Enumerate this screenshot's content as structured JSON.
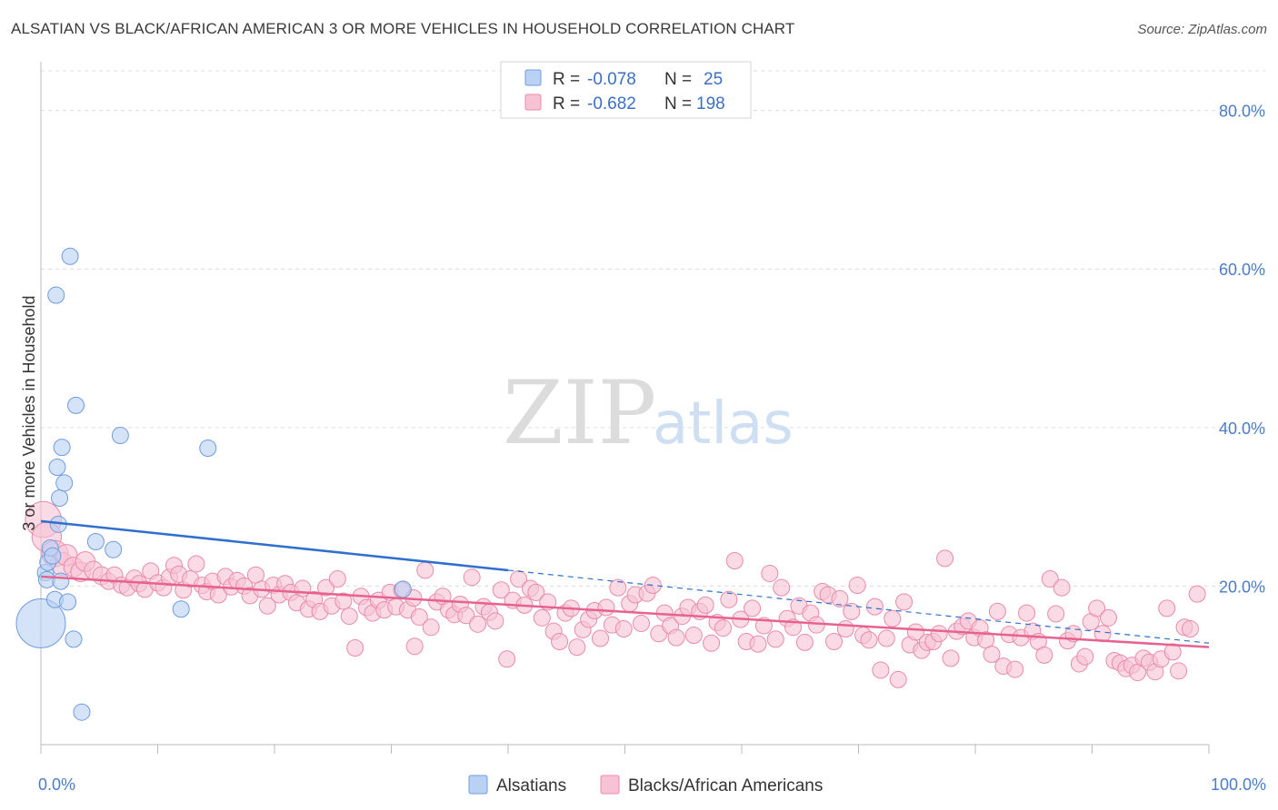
{
  "header": {
    "title": "ALSATIAN VS BLACK/AFRICAN AMERICAN 3 OR MORE VEHICLES IN HOUSEHOLD CORRELATION CHART",
    "source": "Source: ZipAtlas.com"
  },
  "watermark": {
    "zip": "ZIP",
    "atlas": "atlas"
  },
  "colors": {
    "blue_fill": "#b9d1f3",
    "blue_stroke": "#6e9be0",
    "blue_line": "#2f6fce",
    "pink_fill": "#f7c3d4",
    "pink_stroke": "#e98aaa",
    "pink_line": "#e8628e",
    "tick_label": "#4a7dc9",
    "grid": "#dcdcdc"
  },
  "legend": {
    "rows": [
      {
        "r_label": "R = ",
        "r_value": "-0.078",
        "n_label": "N = ",
        "n_value": "25",
        "series": "blue"
      },
      {
        "r_label": "R = ",
        "r_value": "-0.682",
        "n_label": "N = ",
        "n_value": "198",
        "series": "pink"
      }
    ],
    "bottom": [
      "Alsatians",
      "Blacks/African Americans"
    ]
  },
  "chart_data": {
    "type": "scatter",
    "xlabel": "",
    "ylabel": "3 or more Vehicles in Household",
    "xlim": [
      0,
      100
    ],
    "ylim": [
      0,
      85
    ],
    "x_tick_labels": [
      "0.0%",
      "100.0%"
    ],
    "y_ticks": [
      20,
      40,
      60,
      80
    ],
    "y_tick_labels": [
      "20.0%",
      "40.0%",
      "60.0%",
      "80.0%"
    ],
    "grid": true,
    "legend_placement": "top-center",
    "series": [
      {
        "name": "Alsatians",
        "color": "blue",
        "trend": {
          "x": [
            0,
            40
          ],
          "y": [
            28.2,
            22.0
          ],
          "dashed_to": [
            100,
            12.8
          ]
        },
        "points": [
          [
            0,
            15.3,
            3
          ],
          [
            0.4,
            21.7,
            1
          ],
          [
            0.5,
            20.8,
            1
          ],
          [
            0.6,
            23,
            1
          ],
          [
            0.8,
            24.8,
            1
          ],
          [
            1.0,
            23.8,
            1
          ],
          [
            1.2,
            18.3,
            1
          ],
          [
            1.3,
            56.7,
            1
          ],
          [
            1.4,
            35,
            1
          ],
          [
            1.5,
            27.8,
            1
          ],
          [
            1.6,
            31.1,
            1
          ],
          [
            1.7,
            20.6,
            1
          ],
          [
            1.8,
            37.5,
            1
          ],
          [
            2.0,
            33,
            1
          ],
          [
            2.3,
            18,
            1
          ],
          [
            2.5,
            61.6,
            1
          ],
          [
            2.8,
            13.3,
            1
          ],
          [
            3.0,
            42.8,
            1
          ],
          [
            3.5,
            4.1,
            1
          ],
          [
            4.7,
            25.6,
            1
          ],
          [
            6.2,
            24.6,
            1
          ],
          [
            6.8,
            39,
            1
          ],
          [
            12.0,
            17.1,
            1
          ],
          [
            14.3,
            37.4,
            1
          ],
          [
            31.0,
            19.6,
            1
          ]
        ]
      },
      {
        "name": "Blacks/African Americans",
        "color": "pink",
        "trend": {
          "x": [
            0,
            100
          ],
          "y": [
            21.2,
            12.3
          ]
        },
        "points": [
          [
            0.2,
            28.4,
            2.2
          ],
          [
            0.5,
            26.2,
            1.8
          ],
          [
            1.2,
            24.1,
            1.6
          ],
          [
            1.8,
            22.8,
            1.4
          ],
          [
            2.2,
            23.9,
            1.3
          ],
          [
            2.8,
            22.4,
            1.2
          ],
          [
            3.4,
            21.8,
            1.2
          ],
          [
            3.8,
            23.1,
            1.2
          ],
          [
            4.5,
            22.0,
            1.1
          ],
          [
            5.2,
            21.3,
            1.1
          ],
          [
            5.8,
            20.6,
            1
          ],
          [
            6.3,
            21.4,
            1
          ],
          [
            6.9,
            20.1,
            1
          ],
          [
            7.4,
            19.8,
            1
          ],
          [
            8.0,
            21.0,
            1
          ],
          [
            8.4,
            20.3,
            1
          ],
          [
            8.9,
            19.6,
            1
          ],
          [
            9.4,
            21.9,
            1
          ],
          [
            10.0,
            20.4,
            1
          ],
          [
            10.5,
            19.8,
            1
          ],
          [
            11.0,
            21.1,
            1
          ],
          [
            11.4,
            22.6,
            1
          ],
          [
            11.8,
            21.5,
            1
          ],
          [
            12.2,
            19.5,
            1
          ],
          [
            12.8,
            20.9,
            1
          ],
          [
            13.3,
            22.8,
            1
          ],
          [
            13.8,
            20.1,
            1
          ],
          [
            14.2,
            19.3,
            1
          ],
          [
            14.7,
            20.6,
            1
          ],
          [
            15.2,
            18.9,
            1
          ],
          [
            15.8,
            21.2,
            1
          ],
          [
            16.3,
            19.9,
            1
          ],
          [
            16.8,
            20.7,
            1
          ],
          [
            17.4,
            20.0,
            1
          ],
          [
            17.9,
            18.8,
            1
          ],
          [
            18.4,
            21.4,
            1
          ],
          [
            18.9,
            19.6,
            1
          ],
          [
            19.4,
            17.5,
            1
          ],
          [
            19.9,
            20.1,
            1
          ],
          [
            20.4,
            18.9,
            1
          ],
          [
            20.9,
            20.3,
            1
          ],
          [
            21.4,
            19.2,
            1
          ],
          [
            21.9,
            17.9,
            1
          ],
          [
            22.4,
            19.7,
            1
          ],
          [
            22.9,
            17.1,
            1
          ],
          [
            23.4,
            18.3,
            1
          ],
          [
            23.9,
            16.8,
            1
          ],
          [
            24.4,
            19.8,
            1
          ],
          [
            24.9,
            17.5,
            1
          ],
          [
            25.4,
            20.9,
            1
          ],
          [
            25.9,
            18.1,
            1
          ],
          [
            26.4,
            16.2,
            1
          ],
          [
            26.9,
            12.2,
            1
          ],
          [
            27.4,
            18.7,
            1
          ],
          [
            27.9,
            17.3,
            1
          ],
          [
            28.4,
            16.6,
            1
          ],
          [
            28.9,
            18.2,
            1
          ],
          [
            29.4,
            17.0,
            1
          ],
          [
            29.9,
            19.2,
            1
          ],
          [
            30.4,
            17.4,
            1
          ],
          [
            30.9,
            19.5,
            1
          ],
          [
            31.4,
            17.0,
            1
          ],
          [
            31.9,
            18.5,
            1
          ],
          [
            32.4,
            16.1,
            1
          ],
          [
            32.9,
            22.0,
            1
          ],
          [
            33.4,
            14.8,
            1
          ],
          [
            33.9,
            18.0,
            1
          ],
          [
            34.4,
            18.7,
            1
          ],
          [
            34.9,
            17.0,
            1
          ],
          [
            35.4,
            16.4,
            1
          ],
          [
            35.9,
            17.7,
            1
          ],
          [
            36.4,
            16.3,
            1
          ],
          [
            36.9,
            21.1,
            1
          ],
          [
            37.4,
            15.2,
            1
          ],
          [
            37.9,
            17.4,
            1
          ],
          [
            38.4,
            16.7,
            1
          ],
          [
            38.9,
            15.6,
            1
          ],
          [
            39.4,
            19.5,
            1
          ],
          [
            39.9,
            10.8,
            1
          ],
          [
            40.4,
            18.2,
            1
          ],
          [
            40.9,
            20.9,
            1
          ],
          [
            41.4,
            17.6,
            1
          ],
          [
            41.9,
            19.7,
            1
          ],
          [
            42.4,
            19.2,
            1
          ],
          [
            42.9,
            16.0,
            1
          ],
          [
            43.4,
            18.0,
            1
          ],
          [
            43.9,
            14.3,
            1
          ],
          [
            44.4,
            13.0,
            1
          ],
          [
            44.9,
            16.6,
            1
          ],
          [
            45.4,
            17.2,
            1
          ],
          [
            45.9,
            12.3,
            1
          ],
          [
            46.4,
            14.5,
            1
          ],
          [
            46.9,
            15.8,
            1
          ],
          [
            47.4,
            16.9,
            1
          ],
          [
            47.9,
            13.4,
            1
          ],
          [
            48.4,
            17.3,
            1
          ],
          [
            48.9,
            15.1,
            1
          ],
          [
            49.4,
            19.8,
            1
          ],
          [
            49.9,
            14.6,
            1
          ],
          [
            50.4,
            17.8,
            1
          ],
          [
            50.9,
            18.9,
            1
          ],
          [
            51.4,
            15.3,
            1
          ],
          [
            51.9,
            19.1,
            1
          ],
          [
            52.4,
            20.1,
            1
          ],
          [
            52.9,
            14.0,
            1
          ],
          [
            53.4,
            16.6,
            1
          ],
          [
            53.9,
            15.0,
            1
          ],
          [
            54.4,
            13.5,
            1
          ],
          [
            54.9,
            16.2,
            1
          ],
          [
            55.4,
            17.3,
            1
          ],
          [
            55.9,
            13.8,
            1
          ],
          [
            56.4,
            16.8,
            1
          ],
          [
            56.9,
            17.6,
            1
          ],
          [
            57.4,
            12.8,
            1
          ],
          [
            57.9,
            15.4,
            1
          ],
          [
            58.4,
            14.7,
            1
          ],
          [
            58.9,
            18.3,
            1
          ],
          [
            59.4,
            23.2,
            1
          ],
          [
            59.9,
            15.8,
            1
          ],
          [
            60.4,
            13.0,
            1
          ],
          [
            60.9,
            17.2,
            1
          ],
          [
            61.4,
            12.7,
            1
          ],
          [
            61.9,
            15.0,
            1
          ],
          [
            62.4,
            21.6,
            1
          ],
          [
            62.9,
            13.3,
            1
          ],
          [
            63.4,
            19.8,
            1
          ],
          [
            63.9,
            15.9,
            1
          ],
          [
            64.4,
            14.8,
            1
          ],
          [
            64.9,
            17.5,
            1
          ],
          [
            65.4,
            12.9,
            1
          ],
          [
            65.9,
            16.6,
            1
          ],
          [
            66.4,
            15.1,
            1
          ],
          [
            66.9,
            19.3,
            1
          ],
          [
            67.4,
            18.9,
            1
          ],
          [
            67.9,
            13.0,
            1
          ],
          [
            68.4,
            18.4,
            1
          ],
          [
            68.9,
            14.6,
            1
          ],
          [
            69.4,
            16.8,
            1
          ],
          [
            69.9,
            20.1,
            1
          ],
          [
            70.4,
            13.8,
            1
          ],
          [
            70.9,
            13.2,
            1
          ],
          [
            71.4,
            17.4,
            1
          ],
          [
            71.9,
            9.4,
            1
          ],
          [
            72.4,
            13.4,
            1
          ],
          [
            72.9,
            15.9,
            1
          ],
          [
            73.4,
            8.2,
            1
          ],
          [
            73.9,
            18.0,
            1
          ],
          [
            74.4,
            12.6,
            1
          ],
          [
            74.9,
            14.2,
            1
          ],
          [
            75.4,
            11.9,
            1
          ],
          [
            75.9,
            12.9,
            1
          ],
          [
            76.4,
            13.0,
            1
          ],
          [
            76.9,
            14.0,
            1
          ],
          [
            77.4,
            23.5,
            1
          ],
          [
            77.9,
            10.9,
            1
          ],
          [
            78.4,
            14.3,
            1
          ],
          [
            78.9,
            14.9,
            1
          ],
          [
            79.4,
            15.6,
            1
          ],
          [
            79.9,
            13.5,
            1
          ],
          [
            80.4,
            14.7,
            1
          ],
          [
            80.9,
            13.2,
            1
          ],
          [
            81.4,
            11.4,
            1
          ],
          [
            81.9,
            16.8,
            1
          ],
          [
            82.4,
            9.9,
            1
          ],
          [
            82.9,
            13.9,
            1
          ],
          [
            83.4,
            9.5,
            1
          ],
          [
            83.9,
            13.5,
            1
          ],
          [
            84.4,
            16.6,
            1
          ],
          [
            84.9,
            14.3,
            1
          ],
          [
            85.4,
            13.0,
            1
          ],
          [
            85.9,
            11.3,
            1
          ],
          [
            86.4,
            20.9,
            1
          ],
          [
            86.9,
            16.5,
            1
          ],
          [
            87.4,
            19.8,
            1
          ],
          [
            87.9,
            13.1,
            1
          ],
          [
            88.4,
            14.0,
            1
          ],
          [
            88.9,
            10.2,
            1
          ],
          [
            89.4,
            11.1,
            1
          ],
          [
            89.9,
            15.5,
            1
          ],
          [
            90.4,
            17.2,
            1
          ],
          [
            90.9,
            14.0,
            1
          ],
          [
            91.4,
            16.0,
            1
          ],
          [
            91.9,
            10.6,
            1
          ],
          [
            92.4,
            10.3,
            1
          ],
          [
            92.9,
            9.6,
            1
          ],
          [
            93.4,
            10.0,
            1
          ],
          [
            93.9,
            9.1,
            1
          ],
          [
            94.4,
            10.9,
            1
          ],
          [
            94.9,
            10.4,
            1
          ],
          [
            95.4,
            9.2,
            1
          ],
          [
            95.9,
            10.8,
            1
          ],
          [
            96.4,
            17.2,
            1
          ],
          [
            96.9,
            11.7,
            1
          ],
          [
            97.4,
            9.3,
            1
          ],
          [
            97.9,
            14.8,
            1
          ],
          [
            98.4,
            14.6,
            1
          ],
          [
            99.0,
            19.0,
            1
          ],
          [
            32.0,
            12.4,
            1
          ]
        ]
      }
    ]
  }
}
